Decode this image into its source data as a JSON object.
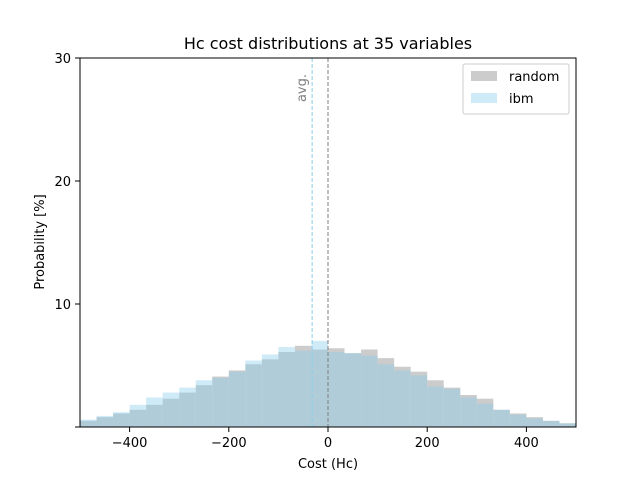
{
  "chart_data": {
    "type": "histogram",
    "title": "Hc cost distributions at 35 variables",
    "xlabel": "Cost (Hc)",
    "ylabel": "Probability [%]",
    "xlim": [
      -500,
      500
    ],
    "ylim": [
      0,
      30
    ],
    "xticks": [
      -400,
      -200,
      0,
      200,
      400
    ],
    "xtick_labels": [
      "−400",
      "−200",
      "0",
      "200",
      "400"
    ],
    "yticks": [
      10,
      20,
      30
    ],
    "ytick_labels": [
      "10",
      "20",
      "30"
    ],
    "bin_edges": [
      -500,
      -466.67,
      -433.33,
      -400,
      -366.67,
      -333.33,
      -300,
      -266.67,
      -233.33,
      -200,
      -166.67,
      -133.33,
      -100,
      -66.67,
      -33.33,
      0,
      33.33,
      66.67,
      100,
      133.33,
      166.67,
      200,
      233.33,
      266.67,
      300,
      333.33,
      366.67,
      400,
      433.33,
      466.67,
      500
    ],
    "series": [
      {
        "name": "random",
        "color": "#bfbfbf",
        "values": [
          0.5,
          0.8,
          1.1,
          1.4,
          1.8,
          2.3,
          2.8,
          3.4,
          4.1,
          4.6,
          5.1,
          5.5,
          6.1,
          6.6,
          6.3,
          6.4,
          6.0,
          6.3,
          5.6,
          4.9,
          4.5,
          3.8,
          3.2,
          2.6,
          2.3,
          1.4,
          1.1,
          0.8,
          0.5,
          0.3
        ]
      },
      {
        "name": "ibm",
        "color": "#87ceeb",
        "values": [
          0.6,
          0.9,
          1.2,
          1.8,
          2.4,
          2.8,
          3.2,
          3.8,
          4.0,
          4.5,
          5.4,
          5.9,
          6.5,
          6.2,
          7.0,
          6.1,
          6.0,
          5.8,
          5.1,
          4.6,
          4.2,
          3.3,
          3.1,
          2.4,
          1.9,
          1.4,
          1.0,
          0.7,
          0.5,
          0.3
        ]
      }
    ],
    "averages": [
      {
        "series": "random",
        "x": 0,
        "color": "#7f7f7f"
      },
      {
        "series": "ibm",
        "x": -32,
        "color": "#87ceeb"
      }
    ],
    "annotation": "avg.",
    "legend_loc": "upper right",
    "grid": false
  }
}
